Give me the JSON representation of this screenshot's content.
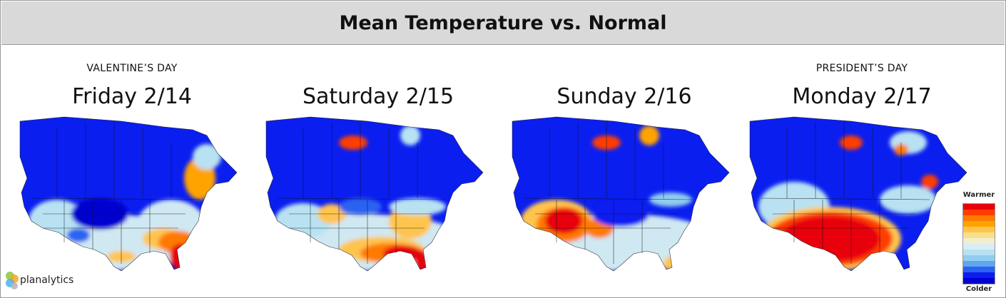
{
  "title": "Mean Temperature vs. Normal",
  "panels": [
    {
      "holiday": "VALENTINE’S DAY",
      "date": "Friday 2/14"
    },
    {
      "holiday": "",
      "date": "Saturday 2/15"
    },
    {
      "holiday": "",
      "date": "Sunday 2/16"
    },
    {
      "holiday": "PRESIDENT’S DAY",
      "date": "Monday 2/17"
    }
  ],
  "legend": {
    "top_label": "Warmer",
    "bottom_label": "Colder",
    "colors": [
      "#e8000b",
      "#ff3c00",
      "#ff7a00",
      "#ffa300",
      "#ffc44d",
      "#f7e08a",
      "#f2eecf",
      "#d6eef4",
      "#b8e2f2",
      "#90cdf0",
      "#5fa6ee",
      "#2b63f0",
      "#0a1ef0",
      "#0000d0"
    ]
  },
  "logo": {
    "text": "planalytics"
  },
  "colors": {
    "cold": "#0a1ef0",
    "cool": "#5fa6ee",
    "near_normal": "#cfe8f2",
    "mild_warm": "#ffc44d",
    "warm": "#ff7a00",
    "hot": "#e8000b"
  }
}
